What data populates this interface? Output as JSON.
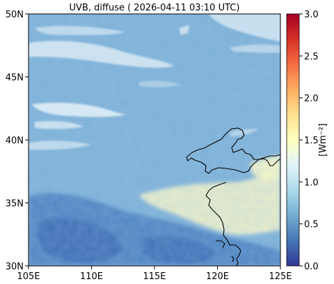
{
  "title": "UVB, diffuse ( 2026-04-11 03:10 UTC)",
  "map": {
    "lat_ticks": [
      "50N",
      "45N",
      "40N",
      "35N",
      "30N"
    ],
    "lon_ticks": [
      "105E",
      "110E",
      "115E",
      "120E",
      "125E"
    ],
    "extent": {
      "lon": [
        105,
        125
      ],
      "lat": [
        30,
        50
      ]
    }
  },
  "colorbar": {
    "label": "[Wm⁻²]",
    "ticks": [
      "3.0",
      "2.5",
      "2.0",
      "1.5",
      "1.0",
      "0.5",
      "0.0"
    ],
    "range": [
      0,
      3
    ],
    "colormap": [
      "#313695",
      "#4575b4",
      "#74add1",
      "#abd9e9",
      "#e0f3f8",
      "#ffffbf",
      "#fee090",
      "#fdae61",
      "#f46d43",
      "#d73027",
      "#a50026"
    ]
  },
  "colors": {
    "field_base": "#7fb2d8",
    "cloud": "#e4f1f8",
    "low": "#4a7fc0",
    "high": "#f8f7c8",
    "coast": "#000000"
  }
}
